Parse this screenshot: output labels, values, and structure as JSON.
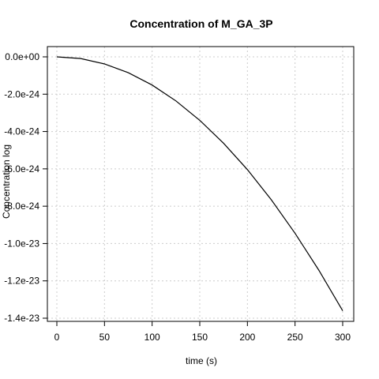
{
  "chart_data": {
    "type": "line",
    "title": "Concentration of M_GA_3P",
    "xlabel": "time (s)",
    "ylabel": "Concentration log",
    "xlim": [
      0,
      300
    ],
    "ylim": [
      -1.4e-23,
      0
    ],
    "xticks": [
      0,
      50,
      100,
      150,
      200,
      250,
      300
    ],
    "xtick_labels": [
      "0",
      "50",
      "100",
      "150",
      "200",
      "250",
      "300"
    ],
    "yticks": [
      0,
      -2e-24,
      -4e-24,
      -6e-24,
      -8e-24,
      -1e-23,
      -1.2e-23,
      -1.4e-23
    ],
    "ytick_labels": [
      "0.0e+00",
      "-2.0e-24",
      "-4.0e-24",
      "-6.0e-24",
      "-8.0e-24",
      "-1.0e-23",
      "-1.2e-23",
      "-1.4e-23"
    ],
    "grid": true,
    "series": [
      {
        "color": "#000000",
        "x": [
          0,
          25,
          50,
          75,
          100,
          125,
          150,
          175,
          200,
          225,
          250,
          275,
          300
        ],
        "y": [
          0,
          -9e-26,
          -3.8e-25,
          -8.5e-25,
          -1.51e-24,
          -2.36e-24,
          -3.4e-24,
          -4.63e-24,
          -6.04e-24,
          -7.65e-24,
          -9.45e-24,
          -1.143e-23,
          -1.36e-23
        ]
      }
    ]
  }
}
